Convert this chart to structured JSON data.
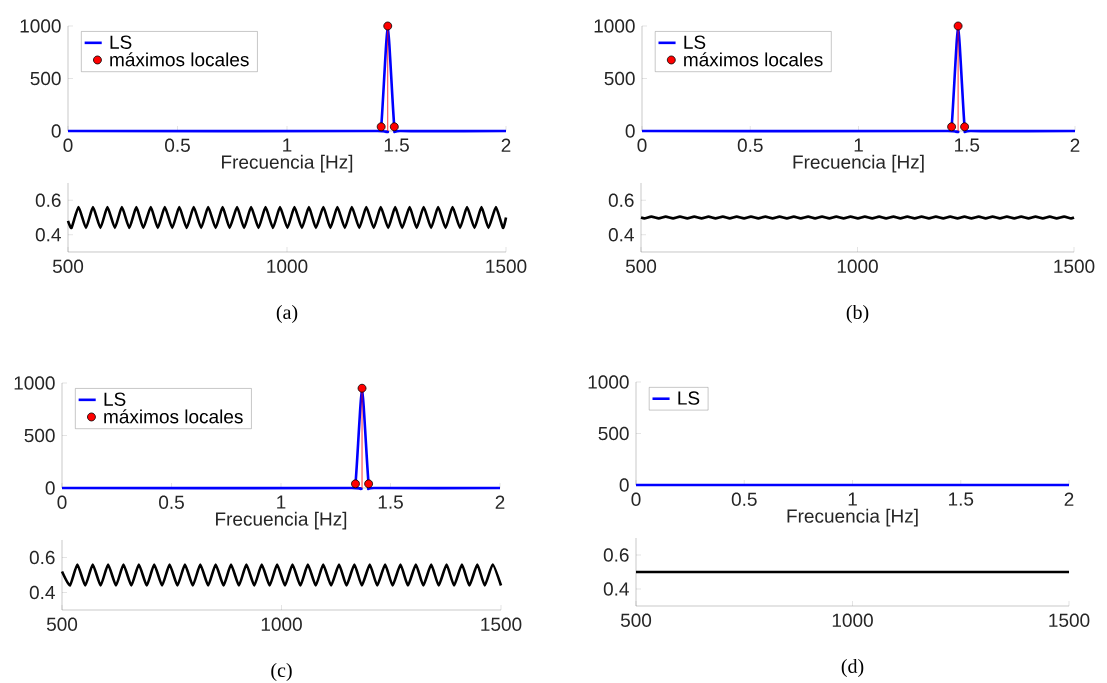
{
  "chart_data": [
    {
      "type": "line",
      "xlabel": "Frecuencia [Hz]",
      "xlim": [
        0,
        2
      ],
      "ylim": [
        0,
        1000
      ],
      "xticks": [
        0,
        0.5,
        1,
        1.5,
        2
      ],
      "yticks": [
        0,
        500,
        1000
      ],
      "legend": "top left",
      "series": [
        {
          "name": "LS",
          "type": "line",
          "color": "#0000ff",
          "x": [
            0,
            1.4,
            1.43,
            1.46,
            1.49,
            1.52,
            2
          ],
          "values": [
            0,
            0,
            40,
            1000,
            40,
            0,
            0
          ]
        },
        {
          "name": "máximos locales",
          "type": "lollipop",
          "marker": "circle",
          "color": "#ff0000",
          "x": [
            1.43,
            1.46,
            1.49
          ],
          "values": [
            40,
            1000,
            40
          ]
        }
      ]
    },
    {
      "type": "line",
      "xlabel": "Frecuencia [Hz]",
      "xlim": [
        0,
        2
      ],
      "ylim": [
        0,
        1000
      ],
      "xticks": [
        0,
        0.5,
        1,
        1.5,
        2
      ],
      "yticks": [
        0,
        500,
        1000
      ],
      "legend": "top left",
      "series": [
        {
          "name": "LS",
          "type": "line",
          "color": "#0000ff",
          "x": [
            0,
            1.4,
            1.43,
            1.46,
            1.49,
            1.52,
            2
          ],
          "values": [
            0,
            0,
            40,
            1000,
            40,
            0,
            0
          ]
        },
        {
          "name": "máximos locales",
          "type": "lollipop",
          "marker": "circle",
          "color": "#ff0000",
          "x": [
            1.43,
            1.46,
            1.49
          ],
          "values": [
            40,
            1000,
            40
          ]
        }
      ]
    },
    {
      "type": "line",
      "xlim": [
        500,
        1500
      ],
      "ylim": [
        0.3,
        0.7
      ],
      "xticks": [
        500,
        1000,
        1500
      ],
      "yticks": [
        0.4,
        0.6
      ],
      "annotations": [
        "(a)"
      ],
      "series": [
        {
          "color": "#000000",
          "x": [
            500,
            508,
            524,
            541,
            557,
            574,
            590,
            607,
            623,
            640,
            656,
            672,
            689,
            705,
            721,
            738,
            754,
            771,
            787,
            804,
            820,
            837,
            853,
            869,
            886,
            902,
            918,
            935,
            951,
            968,
            984,
            1001,
            1017,
            1034,
            1050,
            1066,
            1083,
            1099,
            1115,
            1132,
            1148,
            1165,
            1181,
            1198,
            1214,
            1231,
            1247,
            1263,
            1280,
            1296,
            1312,
            1329,
            1345,
            1362,
            1378,
            1395,
            1411,
            1428,
            1444,
            1460,
            1477,
            1493,
            1500
          ],
          "values": [
            0.48,
            0.44,
            0.56,
            0.44,
            0.56,
            0.44,
            0.56,
            0.44,
            0.56,
            0.44,
            0.56,
            0.44,
            0.56,
            0.44,
            0.56,
            0.44,
            0.56,
            0.44,
            0.56,
            0.44,
            0.56,
            0.44,
            0.56,
            0.44,
            0.56,
            0.44,
            0.56,
            0.44,
            0.56,
            0.44,
            0.56,
            0.44,
            0.56,
            0.44,
            0.56,
            0.44,
            0.56,
            0.44,
            0.56,
            0.44,
            0.56,
            0.44,
            0.56,
            0.44,
            0.56,
            0.44,
            0.56,
            0.44,
            0.56,
            0.44,
            0.56,
            0.44,
            0.56,
            0.44,
            0.56,
            0.44,
            0.56,
            0.44,
            0.56,
            0.44,
            0.56,
            0.44,
            0.5
          ]
        }
      ]
    },
    {
      "type": "line",
      "xlim": [
        500,
        1500
      ],
      "ylim": [
        0.3,
        0.7
      ],
      "xticks": [
        500,
        1000,
        1500
      ],
      "yticks": [
        0.4,
        0.6
      ],
      "annotations": [
        "(b)"
      ],
      "series": [
        {
          "color": "#000000",
          "x": [
            500,
            508,
            524,
            541,
            557,
            574,
            590,
            607,
            623,
            640,
            656,
            672,
            689,
            705,
            721,
            738,
            754,
            771,
            787,
            804,
            820,
            837,
            853,
            869,
            886,
            902,
            918,
            935,
            951,
            968,
            984,
            1001,
            1017,
            1034,
            1050,
            1066,
            1083,
            1099,
            1115,
            1132,
            1148,
            1165,
            1181,
            1198,
            1214,
            1231,
            1247,
            1263,
            1280,
            1296,
            1312,
            1329,
            1345,
            1362,
            1378,
            1395,
            1411,
            1428,
            1444,
            1460,
            1477,
            1493,
            1500
          ],
          "values": [
            0.5,
            0.495,
            0.505,
            0.495,
            0.505,
            0.495,
            0.505,
            0.495,
            0.505,
            0.495,
            0.505,
            0.495,
            0.505,
            0.495,
            0.505,
            0.495,
            0.505,
            0.495,
            0.505,
            0.495,
            0.505,
            0.495,
            0.505,
            0.495,
            0.505,
            0.495,
            0.505,
            0.495,
            0.505,
            0.495,
            0.505,
            0.495,
            0.505,
            0.495,
            0.505,
            0.495,
            0.505,
            0.495,
            0.505,
            0.495,
            0.505,
            0.495,
            0.505,
            0.495,
            0.505,
            0.495,
            0.505,
            0.495,
            0.505,
            0.495,
            0.505,
            0.495,
            0.505,
            0.495,
            0.505,
            0.495,
            0.505,
            0.495,
            0.505,
            0.495,
            0.505,
            0.495,
            0.5
          ]
        }
      ]
    },
    {
      "type": "line",
      "xlabel": "Frecuencia [Hz]",
      "xlim": [
        0,
        2
      ],
      "ylim": [
        0,
        1000
      ],
      "xticks": [
        0,
        0.5,
        1,
        1.5,
        2
      ],
      "yticks": [
        0,
        500,
        1000
      ],
      "legend": "top left",
      "series": [
        {
          "name": "LS",
          "type": "line",
          "color": "#0000ff",
          "x": [
            0,
            1.31,
            1.34,
            1.37,
            1.4,
            1.43,
            2
          ],
          "values": [
            0,
            0,
            40,
            950,
            40,
            0,
            0
          ]
        },
        {
          "name": "máximos locales",
          "type": "lollipop",
          "marker": "circle",
          "color": "#ff0000",
          "x": [
            1.34,
            1.37,
            1.4
          ],
          "values": [
            40,
            950,
            40
          ]
        }
      ]
    },
    {
      "type": "line",
      "xlabel": "Frecuencia [Hz]",
      "xlim": [
        0,
        2
      ],
      "ylim": [
        0,
        1000
      ],
      "xticks": [
        0,
        0.5,
        1,
        1.5,
        2
      ],
      "yticks": [
        0,
        500,
        1000
      ],
      "legend": "top left",
      "series": [
        {
          "name": "LS",
          "type": "line",
          "color": "#0000ff",
          "x": [
            0,
            2
          ],
          "values": [
            0,
            0
          ]
        }
      ]
    },
    {
      "type": "line",
      "xlim": [
        500,
        1500
      ],
      "ylim": [
        0.3,
        0.7
      ],
      "xticks": [
        500,
        1000,
        1500
      ],
      "yticks": [
        0.4,
        0.6
      ],
      "annotations": [
        "(c)"
      ],
      "series": [
        {
          "color": "#000000",
          "x": [
            500,
            518,
            535,
            553,
            570,
            588,
            605,
            623,
            640,
            658,
            675,
            693,
            710,
            728,
            745,
            763,
            780,
            798,
            815,
            833,
            850,
            868,
            885,
            903,
            920,
            938,
            955,
            973,
            990,
            1008,
            1025,
            1043,
            1060,
            1078,
            1095,
            1113,
            1131,
            1148,
            1166,
            1183,
            1201,
            1218,
            1236,
            1253,
            1271,
            1288,
            1306,
            1323,
            1341,
            1358,
            1376,
            1393,
            1411,
            1428,
            1446,
            1463,
            1481,
            1500
          ],
          "values": [
            0.52,
            0.44,
            0.56,
            0.44,
            0.56,
            0.44,
            0.56,
            0.44,
            0.56,
            0.44,
            0.56,
            0.44,
            0.56,
            0.44,
            0.56,
            0.44,
            0.56,
            0.44,
            0.56,
            0.44,
            0.56,
            0.44,
            0.56,
            0.44,
            0.56,
            0.44,
            0.56,
            0.44,
            0.56,
            0.44,
            0.56,
            0.44,
            0.56,
            0.44,
            0.56,
            0.44,
            0.56,
            0.44,
            0.56,
            0.44,
            0.56,
            0.44,
            0.56,
            0.44,
            0.56,
            0.44,
            0.56,
            0.44,
            0.56,
            0.44,
            0.56,
            0.44,
            0.56,
            0.44,
            0.56,
            0.44,
            0.56,
            0.44
          ]
        }
      ]
    },
    {
      "type": "line",
      "xlim": [
        500,
        1500
      ],
      "ylim": [
        0.3,
        0.7
      ],
      "xticks": [
        500,
        1000,
        1500
      ],
      "yticks": [
        0.4,
        0.6
      ],
      "annotations": [
        "(d)"
      ],
      "series": [
        {
          "color": "#000000",
          "x": [
            500,
            1500
          ],
          "values": [
            0.5,
            0.5
          ]
        }
      ]
    }
  ]
}
